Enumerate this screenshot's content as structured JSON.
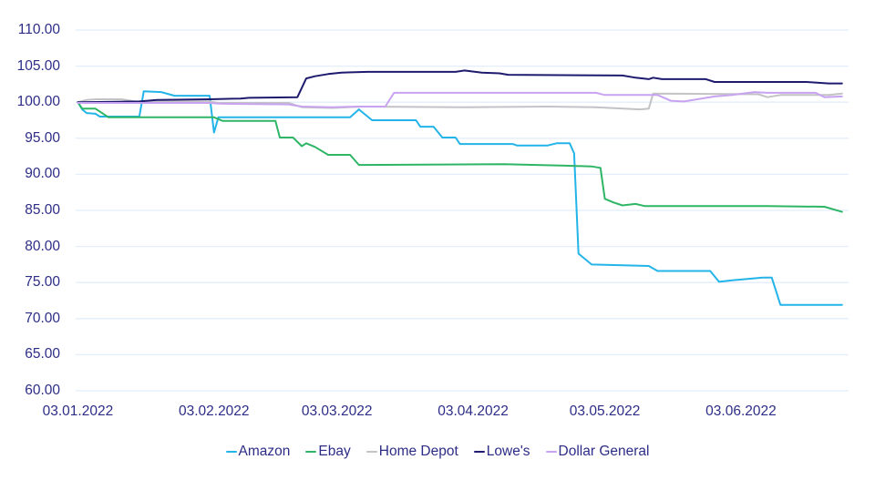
{
  "chart_data": {
    "type": "line",
    "title": "",
    "x_axis": {
      "tick_labels": [
        "03.01.2022",
        "03.02.2022",
        "03.03.2022",
        "03.04.2022",
        "03.05.2022",
        "03.06.2022"
      ],
      "tick_dates": [
        "03.01",
        "03.02",
        "03.03",
        "03.04",
        "03.05",
        "03.06"
      ],
      "date_format": "DD.MM.YYYY",
      "domain_day_start": 2.5,
      "domain_day_end": 178.5
    },
    "y_axis": {
      "min": 60,
      "max": 110,
      "step": 5,
      "tick_labels": [
        "110.00",
        "105.00",
        "100.00",
        "95.00",
        "90.00",
        "85.00",
        "80.00",
        "75.00",
        "70.00",
        "65.00",
        "60.00"
      ],
      "grid": "horizontal-only"
    },
    "legend_position": "bottom",
    "series": [
      {
        "name": "Amazon",
        "color": "#23b4e8",
        "points": [
          [
            "03.01",
            100
          ],
          [
            "04.01",
            99.0
          ],
          [
            "05.01",
            98.5
          ],
          [
            "07.01",
            98.4
          ],
          [
            "08.01",
            98.0
          ],
          [
            "17.01",
            98.0
          ],
          [
            "18.01",
            101.5
          ],
          [
            "22.01",
            101.4
          ],
          [
            "25.01",
            100.9
          ],
          [
            "02.02",
            100.9
          ],
          [
            "03.02",
            95.8
          ],
          [
            "04.02",
            97.9
          ],
          [
            "06.03",
            97.9
          ],
          [
            "08.03",
            99.0
          ],
          [
            "11.03",
            97.5
          ],
          [
            "21.03",
            97.5
          ],
          [
            "22.03",
            96.6
          ],
          [
            "25.03",
            96.6
          ],
          [
            "27.03",
            95.1
          ],
          [
            "30.03",
            95.1
          ],
          [
            "31.03",
            94.2
          ],
          [
            "12.04",
            94.2
          ],
          [
            "13.04",
            94.0
          ],
          [
            "20.04",
            94.0
          ],
          [
            "22.04",
            94.3
          ],
          [
            "25.04",
            94.3
          ],
          [
            "26.04",
            92.9
          ],
          [
            "27.04",
            79.0
          ],
          [
            "30.04",
            77.5
          ],
          [
            "13.05",
            77.3
          ],
          [
            "15.05",
            76.6
          ],
          [
            "27.05",
            76.6
          ],
          [
            "29.05",
            75.1
          ],
          [
            "01.06",
            75.3
          ],
          [
            "08.06",
            75.7
          ],
          [
            "10.06",
            75.7
          ],
          [
            "12.06",
            71.9
          ],
          [
            "26.06",
            71.9
          ]
        ]
      },
      {
        "name": "Ebay",
        "color": "#2fb566",
        "points": [
          [
            "03.01",
            100
          ],
          [
            "04.01",
            99.1
          ],
          [
            "07.01",
            99.1
          ],
          [
            "10.01",
            97.9
          ],
          [
            "03.02",
            97.9
          ],
          [
            "05.02",
            97.4
          ],
          [
            "17.02",
            97.4
          ],
          [
            "18.02",
            95.1
          ],
          [
            "21.02",
            95.1
          ],
          [
            "23.02",
            93.9
          ],
          [
            "24.02",
            94.3
          ],
          [
            "26.02",
            93.8
          ],
          [
            "01.03",
            92.7
          ],
          [
            "06.03",
            92.7
          ],
          [
            "08.03",
            91.3
          ],
          [
            "10.04",
            91.4
          ],
          [
            "24.04",
            91.2
          ],
          [
            "30.04",
            91.1
          ],
          [
            "02.05",
            90.9
          ],
          [
            "03.05",
            86.6
          ],
          [
            "05.05",
            86.1
          ],
          [
            "07.05",
            85.7
          ],
          [
            "10.05",
            85.9
          ],
          [
            "12.05",
            85.6
          ],
          [
            "09.06",
            85.6
          ],
          [
            "22.06",
            85.5
          ],
          [
            "26.06",
            84.8
          ]
        ]
      },
      {
        "name": "Home Depot",
        "color": "#c3c3c6",
        "points": [
          [
            "03.01",
            100
          ],
          [
            "05.01",
            100.3
          ],
          [
            "07.01",
            100.4
          ],
          [
            "13.01",
            100.4
          ],
          [
            "16.01",
            100.1
          ],
          [
            "02.02",
            100.1
          ],
          [
            "04.02",
            99.9
          ],
          [
            "20.02",
            99.9
          ],
          [
            "23.02",
            99.3
          ],
          [
            "02.03",
            99.2
          ],
          [
            "09.03",
            99.4
          ],
          [
            "01.04",
            99.3
          ],
          [
            "20.04",
            99.4
          ],
          [
            "01.05",
            99.3
          ],
          [
            "11.05",
            99.0
          ],
          [
            "13.05",
            99.1
          ],
          [
            "14.05",
            101.2
          ],
          [
            "07.06",
            101.1
          ],
          [
            "09.06",
            100.7
          ],
          [
            "12.06",
            101.0
          ],
          [
            "23.06",
            101.0
          ],
          [
            "26.06",
            101.2
          ]
        ]
      },
      {
        "name": "Lowe's",
        "color": "#1e1a6e",
        "points": [
          [
            "03.01",
            100.0
          ],
          [
            "17.01",
            100.1
          ],
          [
            "21.01",
            100.3
          ],
          [
            "02.02",
            100.4
          ],
          [
            "09.02",
            100.5
          ],
          [
            "11.02",
            100.6
          ],
          [
            "22.02",
            100.7
          ],
          [
            "24.02",
            103.3
          ],
          [
            "26.02",
            103.6
          ],
          [
            "01.03",
            103.9
          ],
          [
            "04.03",
            104.1
          ],
          [
            "10.03",
            104.2
          ],
          [
            "30.03",
            104.2
          ],
          [
            "01.04",
            104.4
          ],
          [
            "05.04",
            104.1
          ],
          [
            "09.04",
            104.0
          ],
          [
            "11.04",
            103.8
          ],
          [
            "07.05",
            103.7
          ],
          [
            "10.05",
            103.4
          ],
          [
            "13.05",
            103.2
          ],
          [
            "14.05",
            103.4
          ],
          [
            "16.05",
            103.2
          ],
          [
            "26.05",
            103.2
          ],
          [
            "28.05",
            102.8
          ],
          [
            "18.06",
            102.8
          ],
          [
            "23.06",
            102.6
          ],
          [
            "26.06",
            102.6
          ]
        ]
      },
      {
        "name": "Dollar General",
        "color": "#c8a4f0",
        "points": [
          [
            "03.01",
            99.9
          ],
          [
            "02.02",
            99.9
          ],
          [
            "04.02",
            99.8
          ],
          [
            "20.02",
            99.7
          ],
          [
            "23.02",
            99.4
          ],
          [
            "02.03",
            99.3
          ],
          [
            "08.03",
            99.4
          ],
          [
            "14.03",
            99.4
          ],
          [
            "16.03",
            101.3
          ],
          [
            "01.05",
            101.3
          ],
          [
            "03.05",
            101.0
          ],
          [
            "15.05",
            101.0
          ],
          [
            "18.05",
            100.2
          ],
          [
            "21.05",
            100.1
          ],
          [
            "28.05",
            100.8
          ],
          [
            "01.06",
            101.0
          ],
          [
            "06.06",
            101.4
          ],
          [
            "09.06",
            101.3
          ],
          [
            "20.06",
            101.3
          ],
          [
            "22.06",
            100.7
          ],
          [
            "26.06",
            100.8
          ]
        ]
      }
    ]
  },
  "style": {
    "axis_text_color": "#2d2d87",
    "gridline_color": "#e3eefa",
    "background_color": "#ffffff",
    "line_width": 2
  }
}
